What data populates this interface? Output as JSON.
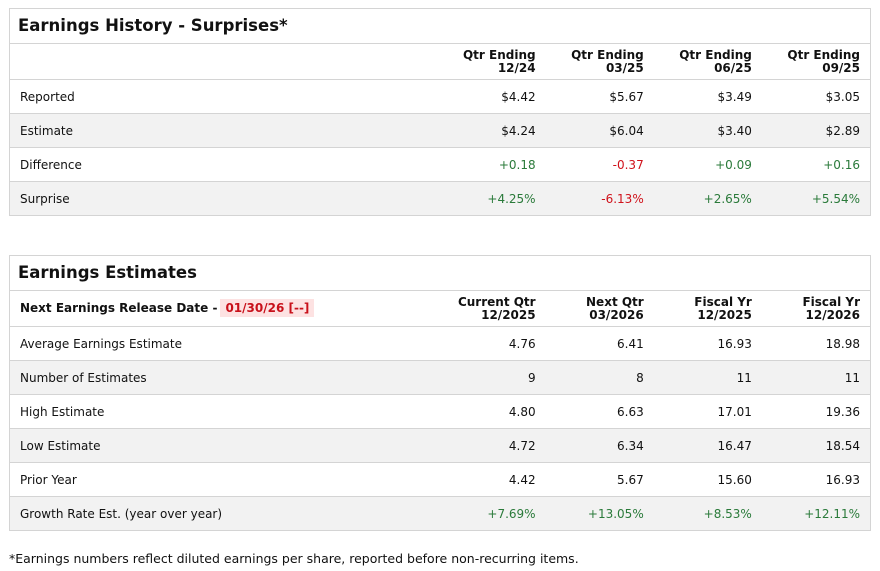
{
  "history": {
    "title": "Earnings History - Surprises*",
    "columns": [
      {
        "l1": "Qtr Ending",
        "l2": "12/24"
      },
      {
        "l1": "Qtr Ending",
        "l2": "03/25"
      },
      {
        "l1": "Qtr Ending",
        "l2": "06/25"
      },
      {
        "l1": "Qtr Ending",
        "l2": "09/25"
      }
    ],
    "rows": [
      {
        "label": "Reported",
        "values": [
          "$4.42",
          "$5.67",
          "$3.49",
          "$3.05"
        ]
      },
      {
        "label": "Estimate",
        "values": [
          "$4.24",
          "$6.04",
          "$3.40",
          "$2.89"
        ]
      },
      {
        "label": "Difference",
        "values": [
          "+0.18",
          "-0.37",
          "+0.09",
          "+0.16"
        ]
      },
      {
        "label": "Surprise",
        "values": [
          "+4.25%",
          "-6.13%",
          "+2.65%",
          "+5.54%"
        ]
      }
    ]
  },
  "estimates": {
    "title": "Earnings Estimates",
    "release_label": "Next Earnings Release Date -",
    "release_date": "01/30/26 [--]",
    "columns": [
      {
        "l1": "Current Qtr",
        "l2": "12/2025"
      },
      {
        "l1": "Next Qtr",
        "l2": "03/2026"
      },
      {
        "l1": "Fiscal Yr",
        "l2": "12/2025"
      },
      {
        "l1": "Fiscal Yr",
        "l2": "12/2026"
      }
    ],
    "rows": [
      {
        "label": "Average Earnings Estimate",
        "values": [
          "4.76",
          "6.41",
          "16.93",
          "18.98"
        ]
      },
      {
        "label": "Number of Estimates",
        "values": [
          "9",
          "8",
          "11",
          "11"
        ]
      },
      {
        "label": "High Estimate",
        "values": [
          "4.80",
          "6.63",
          "17.01",
          "19.36"
        ]
      },
      {
        "label": "Low Estimate",
        "values": [
          "4.72",
          "6.34",
          "16.47",
          "18.54"
        ]
      },
      {
        "label": "Prior Year",
        "values": [
          "4.42",
          "5.67",
          "15.60",
          "16.93"
        ]
      },
      {
        "label": "Growth Rate Est. (year over year)",
        "values": [
          "+7.69%",
          "+13.05%",
          "+8.53%",
          "+12.11%"
        ]
      }
    ]
  },
  "footnote": "*Earnings numbers reflect diluted earnings per share, reported before non-recurring items.",
  "colors": {
    "positive": "#2a7a3a",
    "negative": "#d0121b",
    "release_bg": "#fde2e2"
  }
}
